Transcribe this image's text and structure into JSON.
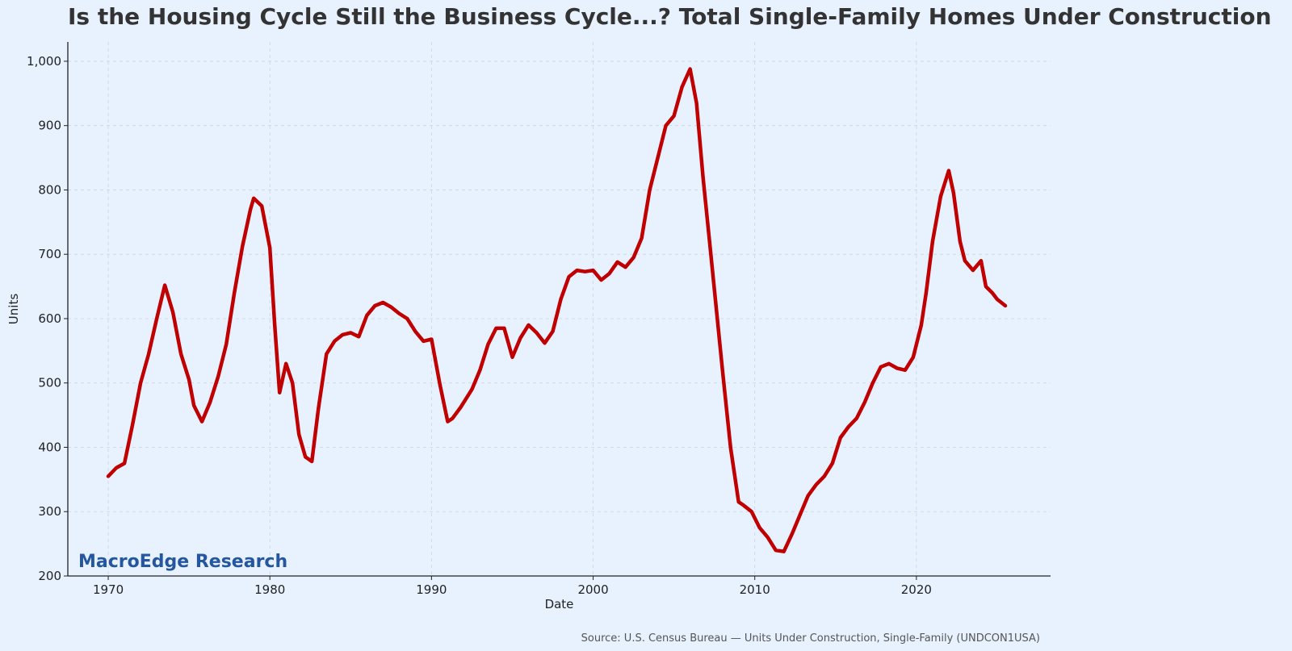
{
  "chart_data": {
    "type": "line",
    "title": "Is the Housing Cycle Still the Business Cycle...? Total Single-Family Homes Under Construction",
    "xlabel": "Date",
    "ylabel": "Units",
    "xlim": [
      1967.5,
      2028.3
    ],
    "ylim": [
      200,
      1030
    ],
    "x_ticks": [
      1970,
      1980,
      1990,
      2000,
      2010,
      2020
    ],
    "x_tick_labels": [
      "1970",
      "1980",
      "1990",
      "2000",
      "2010",
      "2020"
    ],
    "y_ticks": [
      200,
      300,
      400,
      500,
      600,
      700,
      800,
      900,
      1000
    ],
    "y_tick_labels": [
      "200",
      "300",
      "400",
      "500",
      "600",
      "700",
      "800",
      "900",
      "1,000"
    ],
    "grid": true,
    "watermark": "MacroEdge Research",
    "source": "Source: U.S. Census Bureau — Units Under Construction, Single-Family (UNDCON1USA)",
    "series": [
      {
        "color": "#c00000",
        "x": [
          1970.0,
          1970.5,
          1971.0,
          1971.5,
          1972.0,
          1972.5,
          1973.0,
          1973.5,
          1974.0,
          1974.5,
          1975.0,
          1975.3,
          1975.8,
          1976.3,
          1976.8,
          1977.3,
          1977.8,
          1978.3,
          1978.8,
          1979.0,
          1979.5,
          1980.0,
          1980.3,
          1980.6,
          1981.0,
          1981.4,
          1981.8,
          1982.2,
          1982.6,
          1983.0,
          1983.5,
          1984.0,
          1984.5,
          1985.0,
          1985.5,
          1986.0,
          1986.5,
          1987.0,
          1987.5,
          1988.0,
          1988.5,
          1989.0,
          1989.5,
          1990.0,
          1990.5,
          1991.0,
          1991.3,
          1991.8,
          1992.5,
          1993.0,
          1993.5,
          1994.0,
          1994.5,
          1995.0,
          1995.5,
          1996.0,
          1996.5,
          1997.0,
          1997.5,
          1998.0,
          1998.5,
          1999.0,
          1999.5,
          2000.0,
          2000.5,
          2001.0,
          2001.5,
          2002.0,
          2002.5,
          2003.0,
          2003.5,
          2004.0,
          2004.5,
          2005.0,
          2005.5,
          2006.0,
          2006.4,
          2006.8,
          2007.2,
          2007.6,
          2008.0,
          2008.5,
          2009.0,
          2009.3,
          2009.8,
          2010.3,
          2010.8,
          2011.3,
          2011.8,
          2012.3,
          2012.8,
          2013.3,
          2013.8,
          2014.3,
          2014.8,
          2015.3,
          2015.8,
          2016.3,
          2016.8,
          2017.3,
          2017.8,
          2018.3,
          2018.8,
          2019.3,
          2019.8,
          2020.3,
          2020.6,
          2021.0,
          2021.5,
          2022.0,
          2022.3,
          2022.7,
          2023.0,
          2023.5,
          2024.0,
          2024.3,
          2024.7,
          2025.0,
          2025.5
        ],
        "y": [
          355,
          368,
          375,
          435,
          500,
          545,
          600,
          652,
          610,
          545,
          505,
          465,
          440,
          470,
          510,
          560,
          640,
          712,
          770,
          787,
          775,
          710,
          590,
          485,
          530,
          500,
          420,
          385,
          378,
          460,
          545,
          565,
          575,
          578,
          572,
          605,
          620,
          625,
          618,
          608,
          600,
          580,
          565,
          568,
          500,
          440,
          445,
          462,
          490,
          520,
          560,
          585,
          585,
          540,
          570,
          590,
          578,
          562,
          580,
          630,
          665,
          675,
          673,
          675,
          660,
          670,
          688,
          680,
          695,
          725,
          800,
          850,
          900,
          915,
          960,
          988,
          935,
          820,
          720,
          620,
          520,
          400,
          315,
          310,
          300,
          275,
          260,
          240,
          238,
          265,
          295,
          325,
          342,
          355,
          375,
          415,
          432,
          445,
          470,
          500,
          525,
          530,
          523,
          520,
          540,
          590,
          640,
          720,
          790,
          830,
          795,
          720,
          690,
          675,
          690,
          650,
          640,
          630,
          620
        ]
      }
    ]
  }
}
